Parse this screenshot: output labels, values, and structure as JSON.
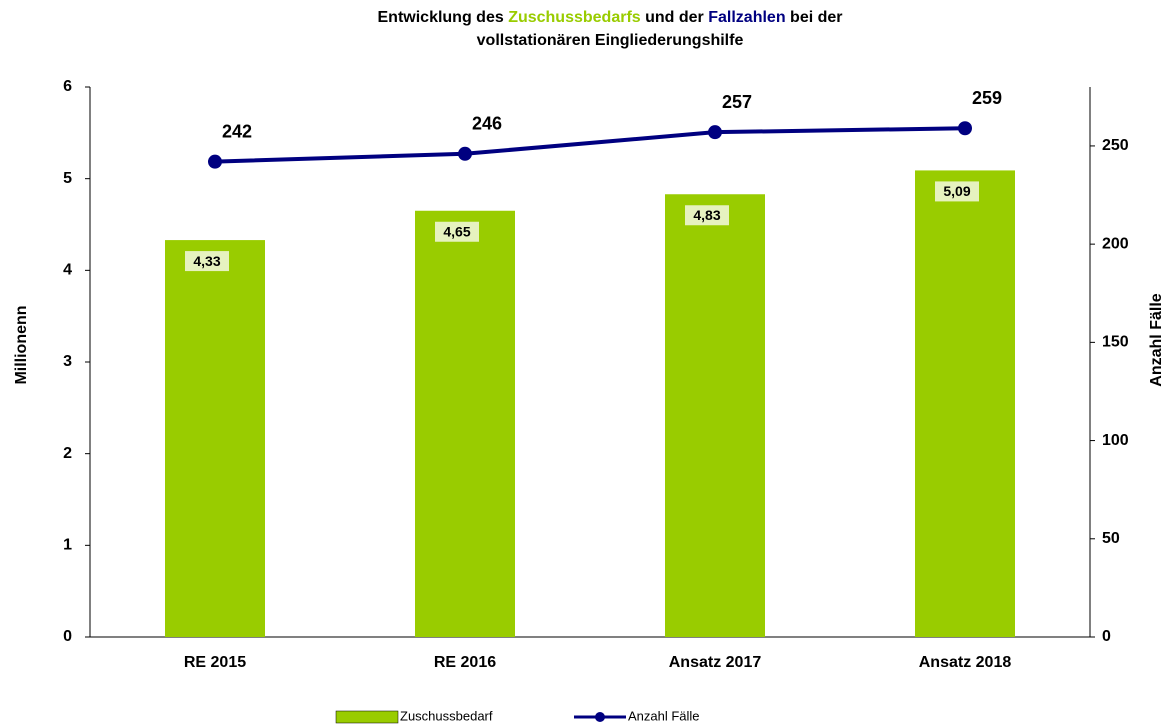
{
  "chart_data": {
    "type": "bar_line",
    "title": [
      "Entwicklung des ",
      "Zuschussbedarfs",
      " und der ",
      "Fallzahlen",
      " bei der",
      "vollstationären Eingliederungshilfe"
    ],
    "ylabel": "Millionenn",
    "y2label": "Anzahl Fälle",
    "categories": [
      "RE 2015",
      "RE 2016",
      "Ansatz 2017",
      "Ansatz 2018"
    ],
    "series": [
      {
        "name": "Zuschussbedarf",
        "color": "#99cc00",
        "type": "bar",
        "values": [
          4.33,
          4.65,
          4.83,
          5.09
        ],
        "value_labels": [
          "4,33",
          "4,65",
          "4,83",
          "5,09"
        ]
      },
      {
        "name": "Anzahl Fälle",
        "color": "#000080",
        "type": "line",
        "axis": "y2",
        "values": [
          242,
          246,
          257,
          259
        ]
      }
    ],
    "ylim": [
      0,
      6
    ],
    "yticks": [
      0,
      1,
      2,
      3,
      4,
      5,
      6
    ],
    "y2lim": [
      0,
      280
    ],
    "y2ticks": [
      0,
      50,
      100,
      150,
      200,
      250
    ],
    "legend": "bottom"
  }
}
